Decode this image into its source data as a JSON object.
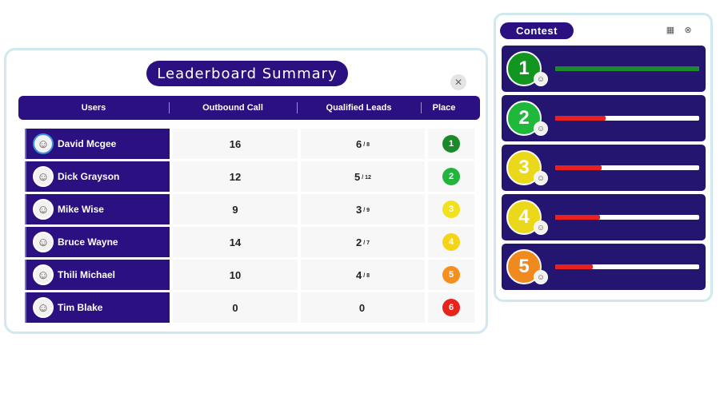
{
  "leaderboard": {
    "title": "Leaderboard Summary",
    "close_icon": "close-icon",
    "columns": {
      "users": "Users",
      "outbound": "Outbound Call",
      "qualified": "Qualified Leads",
      "place": "Place"
    },
    "rows": [
      {
        "name": "David Mcgee",
        "outbound": "16",
        "qualified": "6",
        "qualified_total": "/ 8",
        "place": "1",
        "place_color": "#1a8a2a"
      },
      {
        "name": "Dick Grayson",
        "outbound": "12",
        "qualified": "5",
        "qualified_total": "/ 12",
        "place": "2",
        "place_color": "#22b43c"
      },
      {
        "name": "Mike Wise",
        "outbound": "9",
        "qualified": "3",
        "qualified_total": "/ 9",
        "place": "3",
        "place_color": "#f2e21c"
      },
      {
        "name": "Bruce Wayne",
        "outbound": "14",
        "qualified": "2",
        "qualified_total": "/ 7",
        "place": "4",
        "place_color": "#f4d41a"
      },
      {
        "name": "Thili Michael",
        "outbound": "10",
        "qualified": "4",
        "qualified_total": "/ 8",
        "place": "5",
        "place_color": "#f5901e"
      },
      {
        "name": "Tim Blake",
        "outbound": "0",
        "qualified": "0",
        "qualified_total": "",
        "place": "6",
        "place_color": "#e8231c"
      }
    ]
  },
  "contest": {
    "title": "Contest",
    "icons": [
      "grid-icon",
      "close-icon"
    ],
    "entries": [
      {
        "rank": "1",
        "color": "#12961f",
        "progress": 1.0,
        "bar_color": "#1a8a2a"
      },
      {
        "rank": "2",
        "color": "#1fb83a",
        "progress": 0.35,
        "bar_color": "#e82020"
      },
      {
        "rank": "3",
        "color": "#ecd81a",
        "progress": 0.32,
        "bar_color": "#e82020"
      },
      {
        "rank": "4",
        "color": "#ecd81a",
        "progress": 0.31,
        "bar_color": "#e82020"
      },
      {
        "rank": "5",
        "color": "#f08a1e",
        "progress": 0.26,
        "bar_color": "#e82020"
      }
    ]
  }
}
